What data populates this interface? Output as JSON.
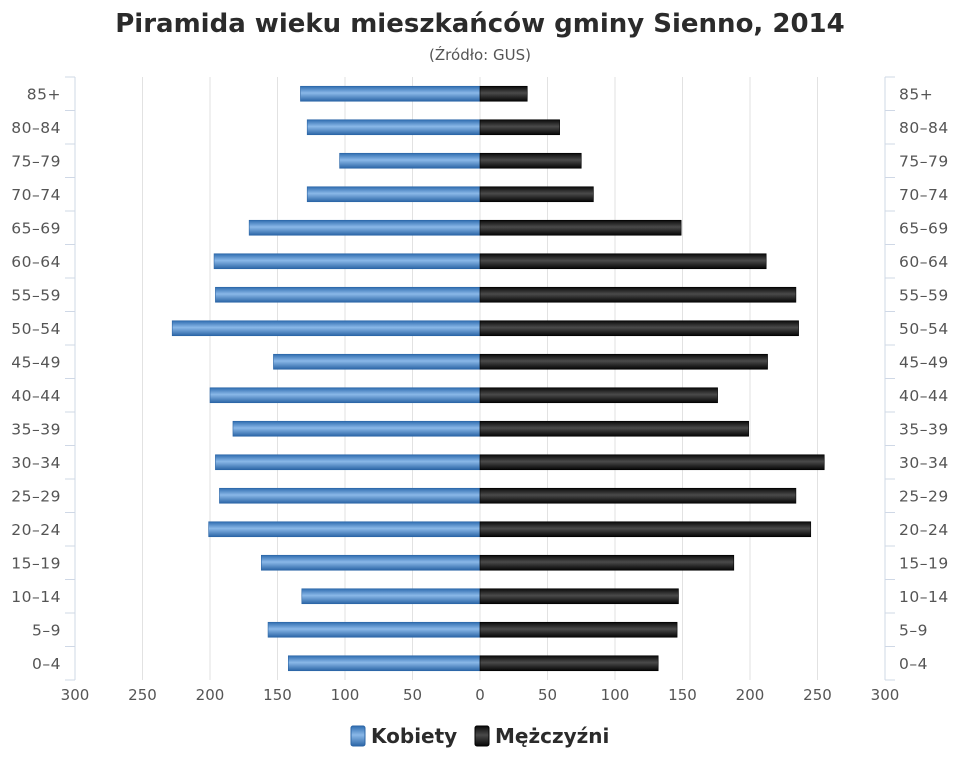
{
  "chart_data": {
    "type": "bar",
    "orientation": "horizontal",
    "title": "Piramida wieku mieszkańców gminy Sienno, 2014",
    "subtitle": "(Źródło: GUS)",
    "categories": [
      "0-4",
      "5-9",
      "10-14",
      "15-19",
      "20-24",
      "25-29",
      "30-34",
      "35-39",
      "40-44",
      "45-49",
      "50-54",
      "55-59",
      "60-64",
      "65-69",
      "70-74",
      "75-79",
      "80-84",
      "85+"
    ],
    "category_labels": [
      "0–4",
      "5–9",
      "10–14",
      "15–19",
      "20–24",
      "25–29",
      "30–34",
      "35–39",
      "40–44",
      "45–49",
      "50–54",
      "55–59",
      "60–64",
      "65–69",
      "70–74",
      "75–79",
      "80–84",
      "85+"
    ],
    "series": [
      {
        "name": "Kobiety",
        "side": "left",
        "color": "#4a86c8",
        "values": [
          142,
          157,
          132,
          162,
          201,
          193,
          196,
          183,
          200,
          153,
          228,
          196,
          197,
          171,
          128,
          104,
          128,
          133
        ]
      },
      {
        "name": "Mężczyźni",
        "side": "right",
        "color": "#1e1e1e",
        "values": [
          132,
          146,
          147,
          188,
          245,
          234,
          255,
          199,
          176,
          213,
          236,
          234,
          212,
          149,
          84,
          75,
          59,
          35
        ]
      }
    ],
    "x_ticks": [
      "300",
      "250",
      "200",
      "150",
      "100",
      "50",
      "0",
      "50",
      "100",
      "150",
      "200",
      "250",
      "300"
    ],
    "xlim": [
      -300,
      300
    ],
    "grid": true,
    "legend_position": "bottom"
  }
}
